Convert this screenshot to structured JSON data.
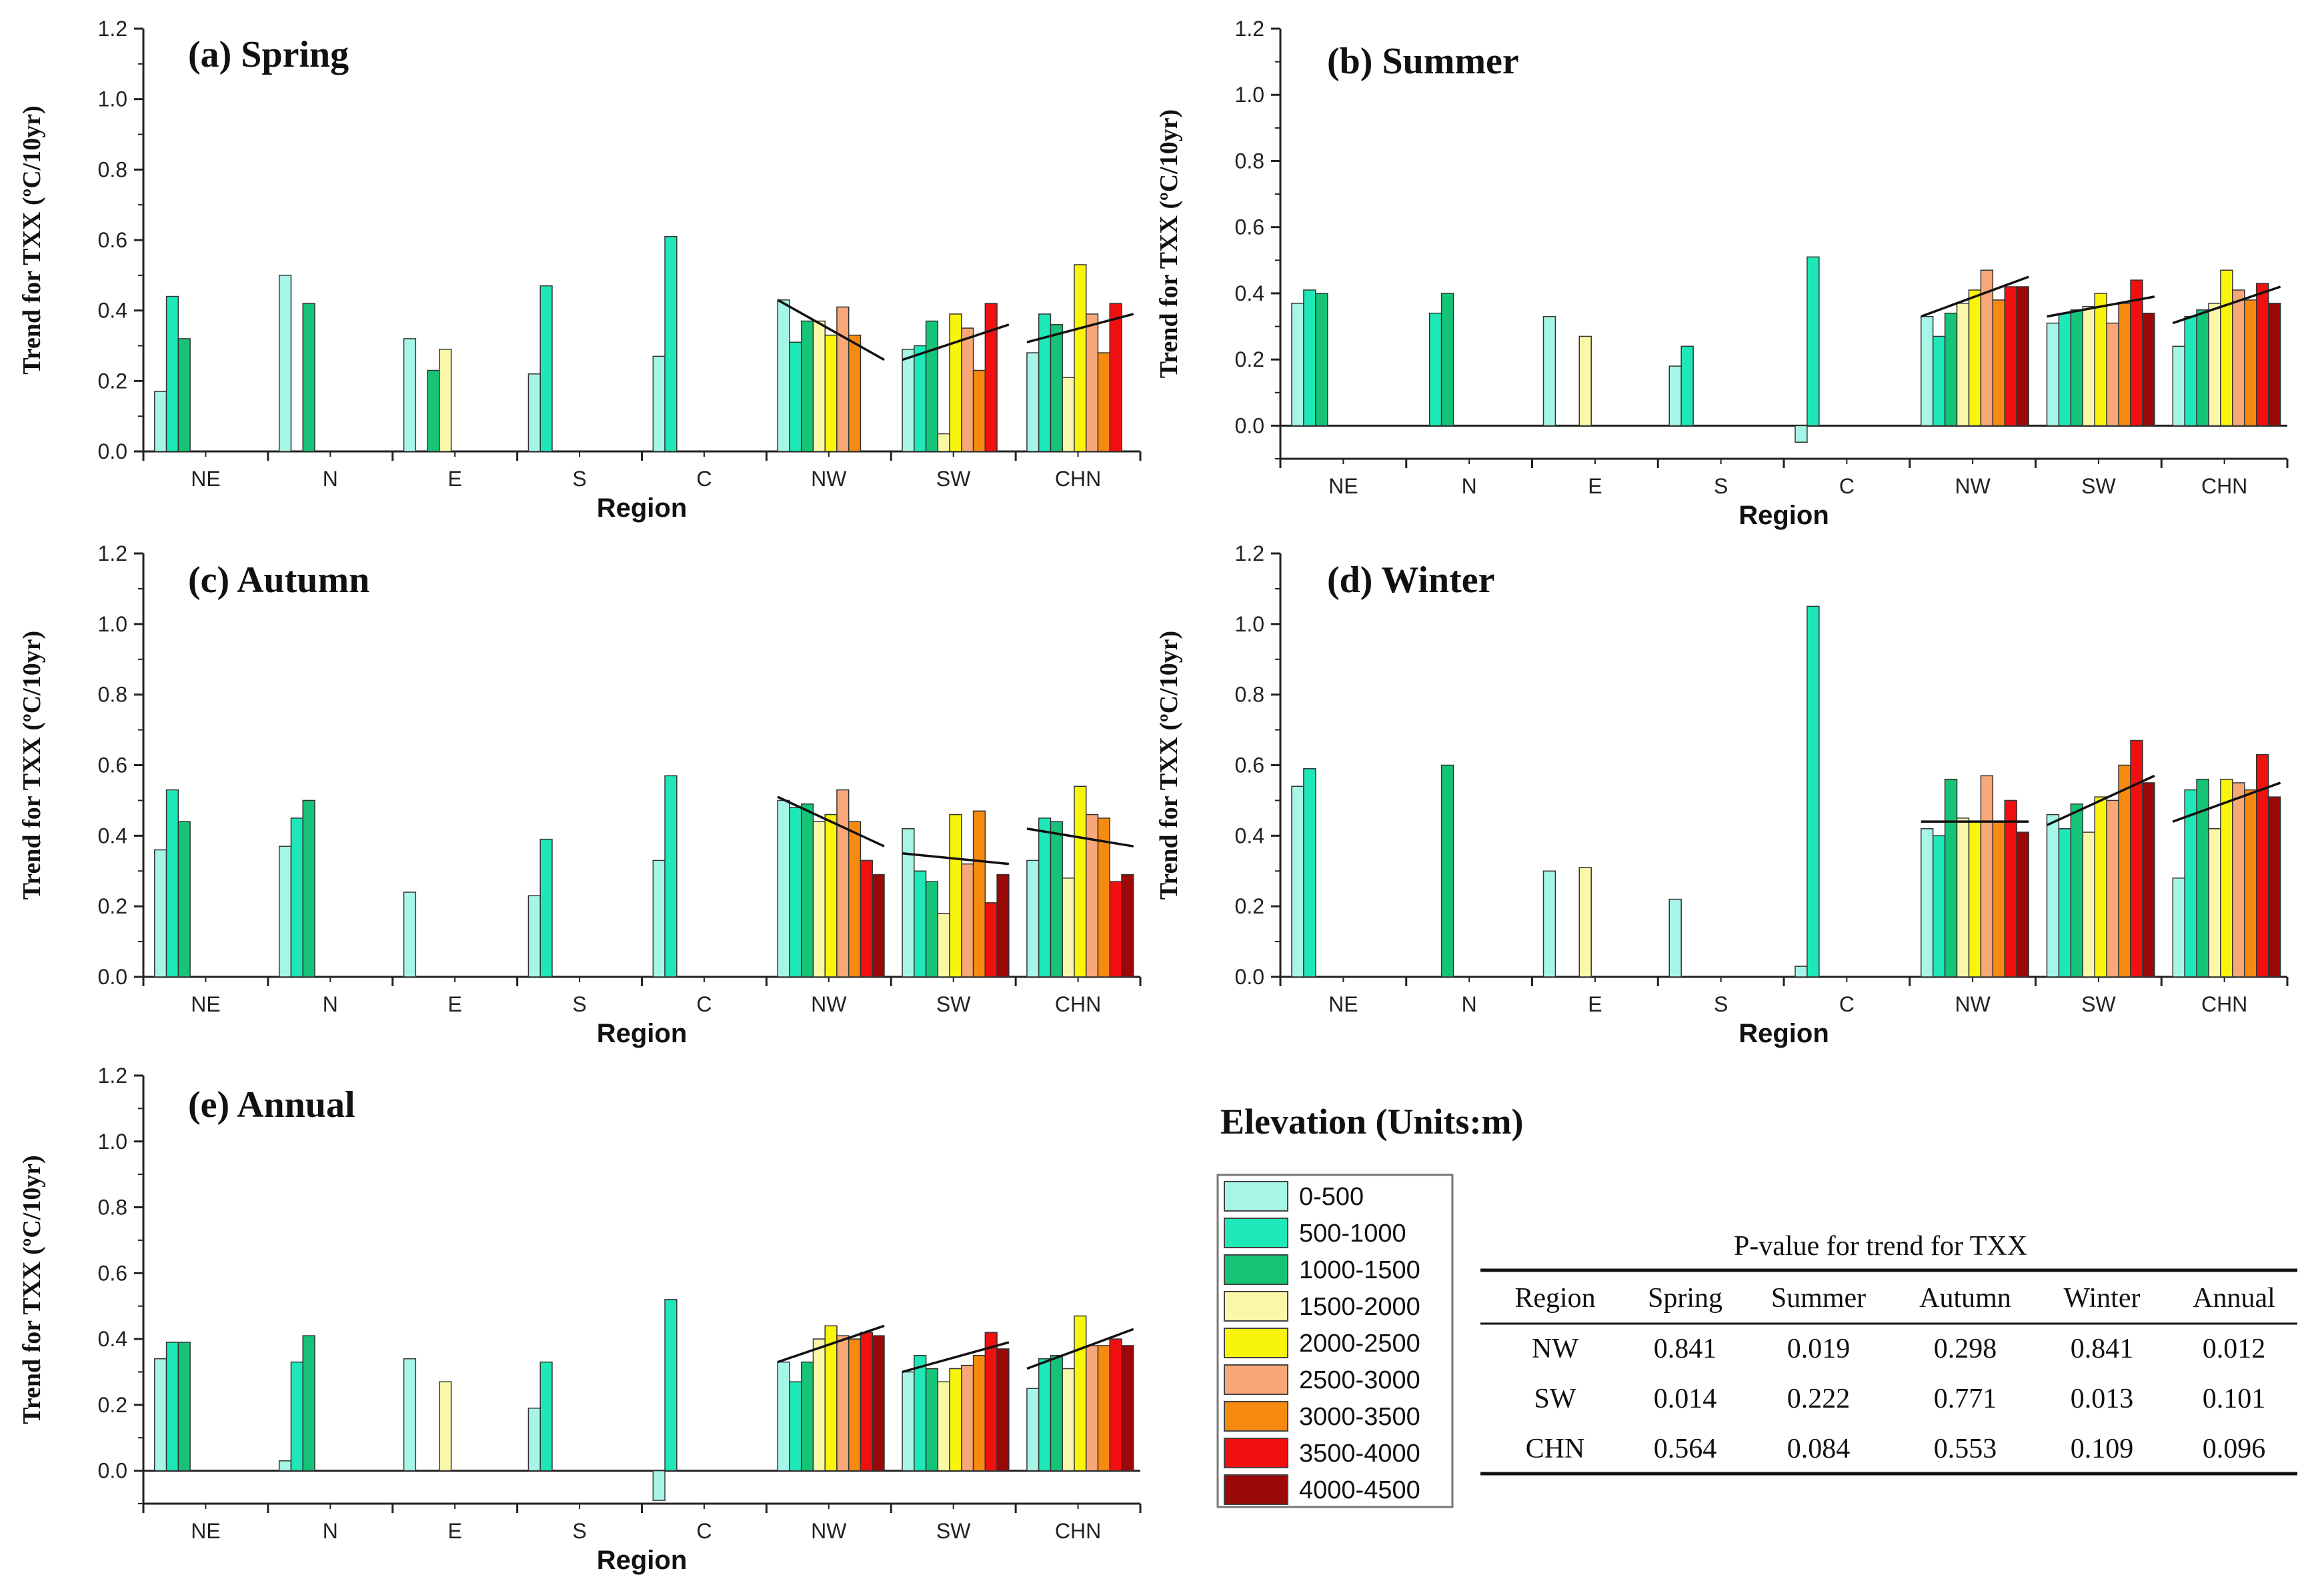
{
  "chart_data": [
    {
      "type": "bar",
      "title": "(a) Spring",
      "xlabel": "Region",
      "ylabel": "Trend for TXX (ºC/10yr)",
      "ylim": [
        0,
        1.2
      ],
      "yticks": [
        "0.0",
        "0.2",
        "0.4",
        "0.6",
        "0.8",
        "1.0",
        "1.2"
      ],
      "categories": [
        "NE",
        "N",
        "E",
        "S",
        "C",
        "NW",
        "SW",
        "CHN"
      ],
      "groups": [
        [
          0.17,
          0.44,
          0.32,
          null,
          null,
          null,
          null,
          null,
          null
        ],
        [
          0.5,
          null,
          0.42,
          null,
          null,
          null,
          null,
          null,
          null
        ],
        [
          0.32,
          null,
          0.23,
          0.29,
          null,
          null,
          null,
          null,
          null
        ],
        [
          0.22,
          0.47,
          null,
          null,
          null,
          null,
          null,
          null,
          null
        ],
        [
          0.27,
          0.61,
          null,
          null,
          null,
          null,
          null,
          null,
          null
        ],
        [
          0.43,
          0.31,
          0.37,
          0.37,
          0.33,
          0.41,
          0.33,
          null,
          null
        ],
        [
          0.29,
          0.3,
          0.37,
          0.05,
          0.39,
          0.35,
          0.23,
          0.42,
          null
        ],
        [
          0.28,
          0.39,
          0.36,
          0.21,
          0.53,
          0.39,
          0.28,
          0.42,
          null
        ]
      ],
      "trendlines": [
        {
          "region": "NW",
          "from": 0.43,
          "to": 0.26
        },
        {
          "region": "SW",
          "from": 0.26,
          "to": 0.36
        },
        {
          "region": "CHN",
          "from": 0.31,
          "to": 0.39
        }
      ]
    },
    {
      "type": "bar",
      "title": "(b) Summer",
      "xlabel": "Region",
      "ylabel": "Trend for TXX (ºC/10yr)",
      "ylim": [
        -0.1,
        1.2
      ],
      "yticks": [
        "0.0",
        "0.2",
        "0.4",
        "0.6",
        "0.8",
        "1.0",
        "1.2"
      ],
      "categories": [
        "NE",
        "N",
        "E",
        "S",
        "C",
        "NW",
        "SW",
        "CHN"
      ],
      "groups": [
        [
          0.37,
          0.41,
          0.4,
          null,
          null,
          null,
          null,
          null,
          null
        ],
        [
          null,
          0.34,
          0.4,
          null,
          null,
          null,
          null,
          null,
          null
        ],
        [
          0.33,
          null,
          null,
          0.27,
          null,
          null,
          null,
          null,
          null
        ],
        [
          0.18,
          0.24,
          null,
          null,
          null,
          null,
          null,
          null,
          null
        ],
        [
          -0.05,
          0.51,
          null,
          null,
          null,
          null,
          null,
          null,
          null
        ],
        [
          0.33,
          0.27,
          0.34,
          0.37,
          0.41,
          0.47,
          0.38,
          0.42,
          0.42
        ],
        [
          0.31,
          0.34,
          0.35,
          0.36,
          0.4,
          0.31,
          0.37,
          0.44,
          0.34
        ],
        [
          0.24,
          0.33,
          0.35,
          0.37,
          0.47,
          0.41,
          0.38,
          0.43,
          0.37
        ]
      ],
      "trendlines": [
        {
          "region": "NW",
          "from": 0.33,
          "to": 0.45
        },
        {
          "region": "SW",
          "from": 0.33,
          "to": 0.39
        },
        {
          "region": "CHN",
          "from": 0.31,
          "to": 0.42
        }
      ]
    },
    {
      "type": "bar",
      "title": "(c) Autumn",
      "xlabel": "Region",
      "ylabel": "Trend for TXX (ºC/10yr)",
      "ylim": [
        0,
        1.2
      ],
      "yticks": [
        "0.0",
        "0.2",
        "0.4",
        "0.6",
        "0.8",
        "1.0",
        "1.2"
      ],
      "categories": [
        "NE",
        "N",
        "E",
        "S",
        "C",
        "NW",
        "SW",
        "CHN"
      ],
      "groups": [
        [
          0.36,
          0.53,
          0.44,
          null,
          null,
          null,
          null,
          null,
          null
        ],
        [
          0.37,
          0.45,
          0.5,
          null,
          null,
          null,
          null,
          null,
          null
        ],
        [
          0.24,
          null,
          null,
          null,
          null,
          null,
          null,
          null,
          null
        ],
        [
          0.23,
          0.39,
          null,
          null,
          null,
          null,
          null,
          null,
          null
        ],
        [
          0.33,
          0.57,
          null,
          null,
          null,
          null,
          null,
          null,
          null
        ],
        [
          0.5,
          0.48,
          0.49,
          0.44,
          0.46,
          0.53,
          0.44,
          0.33,
          0.29
        ],
        [
          0.42,
          0.3,
          0.27,
          0.18,
          0.46,
          0.32,
          0.47,
          0.21,
          0.29
        ],
        [
          0.33,
          0.45,
          0.44,
          0.28,
          0.54,
          0.46,
          0.45,
          0.27,
          0.29
        ]
      ],
      "trendlines": [
        {
          "region": "NW",
          "from": 0.51,
          "to": 0.37
        },
        {
          "region": "SW",
          "from": 0.35,
          "to": 0.32
        },
        {
          "region": "CHN",
          "from": 0.42,
          "to": 0.37
        }
      ]
    },
    {
      "type": "bar",
      "title": "(d) Winter",
      "xlabel": "Region",
      "ylabel": "Trend for TXX (ºC/10yr)",
      "ylim": [
        0,
        1.2
      ],
      "yticks": [
        "0.0",
        "0.2",
        "0.4",
        "0.6",
        "0.8",
        "1.0",
        "1.2"
      ],
      "categories": [
        "NE",
        "N",
        "E",
        "S",
        "C",
        "NW",
        "SW",
        "CHN"
      ],
      "groups": [
        [
          0.54,
          0.59,
          null,
          null,
          null,
          null,
          null,
          null,
          null
        ],
        [
          null,
          null,
          0.6,
          null,
          null,
          null,
          null,
          null,
          null
        ],
        [
          0.3,
          null,
          null,
          0.31,
          null,
          null,
          null,
          null,
          null
        ],
        [
          0.22,
          null,
          null,
          null,
          null,
          null,
          null,
          null,
          null
        ],
        [
          0.03,
          1.05,
          null,
          null,
          null,
          null,
          null,
          null,
          null
        ],
        [
          0.42,
          0.4,
          0.56,
          0.45,
          0.44,
          0.57,
          0.44,
          0.5,
          0.41
        ],
        [
          0.46,
          0.42,
          0.49,
          0.41,
          0.51,
          0.5,
          0.6,
          0.67,
          0.55
        ],
        [
          0.28,
          0.53,
          0.56,
          0.42,
          0.56,
          0.55,
          0.53,
          0.63,
          0.51
        ]
      ],
      "trendlines": [
        {
          "region": "NW",
          "from": 0.44,
          "to": 0.44
        },
        {
          "region": "SW",
          "from": 0.43,
          "to": 0.57
        },
        {
          "region": "CHN",
          "from": 0.44,
          "to": 0.55
        }
      ]
    },
    {
      "type": "bar",
      "title": "(e) Annual",
      "xlabel": "Region",
      "ylabel": "Trend for TXX (ºC/10yr)",
      "ylim": [
        -0.1,
        1.2
      ],
      "yticks": [
        "0.0",
        "0.2",
        "0.4",
        "0.6",
        "0.8",
        "1.0",
        "1.2"
      ],
      "categories": [
        "NE",
        "N",
        "E",
        "S",
        "C",
        "NW",
        "SW",
        "CHN"
      ],
      "groups": [
        [
          0.34,
          0.39,
          0.39,
          null,
          null,
          null,
          null,
          null,
          null
        ],
        [
          0.03,
          0.33,
          0.41,
          null,
          null,
          null,
          null,
          null,
          null
        ],
        [
          0.34,
          null,
          null,
          0.27,
          null,
          null,
          null,
          null,
          null
        ],
        [
          0.19,
          0.33,
          null,
          null,
          null,
          null,
          null,
          null,
          null
        ],
        [
          -0.09,
          0.52,
          null,
          null,
          null,
          null,
          null,
          null,
          null
        ],
        [
          0.33,
          0.27,
          0.33,
          0.4,
          0.44,
          0.41,
          0.4,
          0.42,
          0.41
        ],
        [
          0.3,
          0.35,
          0.31,
          0.27,
          0.31,
          0.32,
          0.35,
          0.42,
          0.37
        ],
        [
          0.25,
          0.34,
          0.35,
          0.31,
          0.47,
          0.38,
          0.38,
          0.4,
          0.38
        ]
      ],
      "trendlines": [
        {
          "region": "NW",
          "from": 0.33,
          "to": 0.44
        },
        {
          "region": "SW",
          "from": 0.3,
          "to": 0.39
        },
        {
          "region": "CHN",
          "from": 0.31,
          "to": 0.43
        }
      ]
    }
  ],
  "legend": {
    "title": "Elevation (Units:m)",
    "items": [
      {
        "label": "0-500",
        "color": "#a6f5e6"
      },
      {
        "label": "500-1000",
        "color": "#1ee8b8"
      },
      {
        "label": "1000-1500",
        "color": "#16c478"
      },
      {
        "label": "1500-2000",
        "color": "#fbf7a8"
      },
      {
        "label": "2000-2500",
        "color": "#f8f40c"
      },
      {
        "label": "2500-3000",
        "color": "#f8a878"
      },
      {
        "label": "3000-3500",
        "color": "#f78a10"
      },
      {
        "label": "3500-4000",
        "color": "#f01010"
      },
      {
        "label": "4000-4500",
        "color": "#9a0808"
      }
    ]
  },
  "pvalue_table": {
    "title": "P-value for trend for TXX",
    "headers": [
      "Region",
      "Spring",
      "Summer",
      "Autumn",
      "Winter",
      "Annual"
    ],
    "rows": [
      [
        "NW",
        "0.841",
        "0.019",
        "0.298",
        "0.841",
        "0.012"
      ],
      [
        "SW",
        "0.014",
        "0.222",
        "0.771",
        "0.013",
        "0.101"
      ],
      [
        "CHN",
        "0.564",
        "0.084",
        "0.553",
        "0.109",
        "0.096"
      ]
    ]
  }
}
